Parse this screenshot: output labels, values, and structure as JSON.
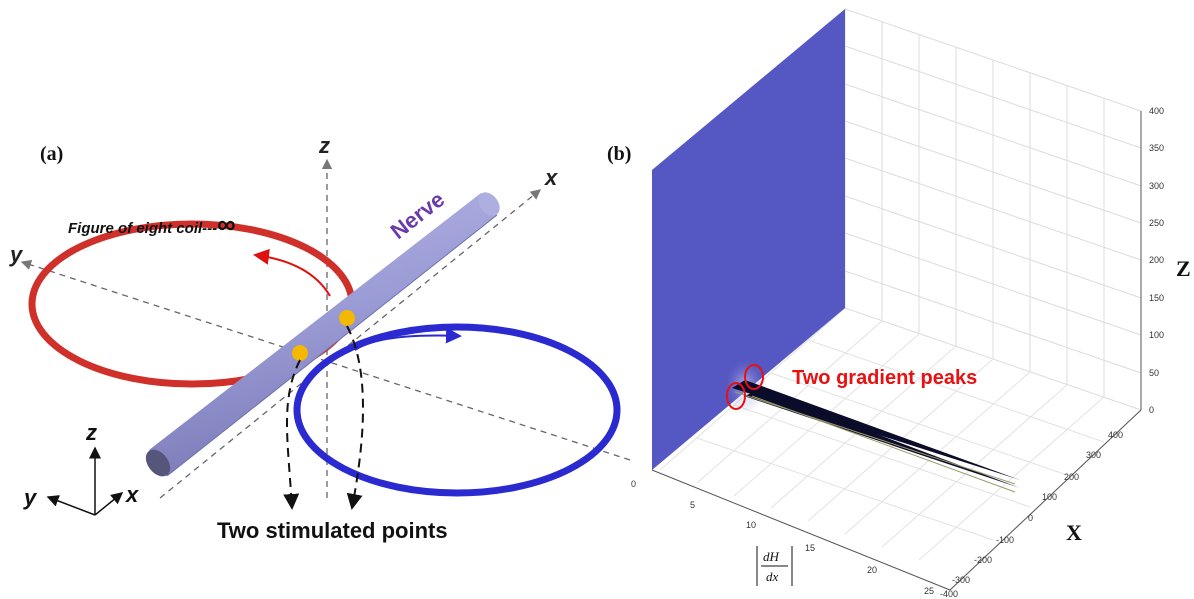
{
  "panel_a": {
    "label": "(a)",
    "axis_z": "z",
    "axis_x": "x",
    "axis_y": "y",
    "coil_label": "Figure of eight coil---",
    "coil_symbol": "∞",
    "nerve_label": "Nerve",
    "points_label": "Two stimulated points",
    "triad": {
      "z": "z",
      "y": "y",
      "x": "x"
    },
    "colors": {
      "red_coil": "#d0302a",
      "blue_coil": "#2a2ad0",
      "nerve": "#9a9ad0",
      "points": "#f5b800",
      "nerve_label": "#6a3aa8"
    }
  },
  "panel_b": {
    "label": "(b)",
    "annotation": "Two gradient peaks",
    "z_axis": {
      "label": "Z",
      "ticks": [
        "0",
        "50",
        "100",
        "150",
        "200",
        "250",
        "300",
        "350",
        "400"
      ]
    },
    "x_axis": {
      "label": "X",
      "ticks": [
        "400",
        "300",
        "200",
        "100",
        "0",
        "-100",
        "-200",
        "-300",
        "-400"
      ]
    },
    "grad_axis": {
      "label_num": "dH",
      "label_den": "dx",
      "ticks": [
        "0",
        "5",
        "10",
        "15",
        "20",
        "25"
      ]
    },
    "colors": {
      "surface": "#5557c2",
      "annotation": "#e81010",
      "grid": "#dcdcdc"
    }
  }
}
